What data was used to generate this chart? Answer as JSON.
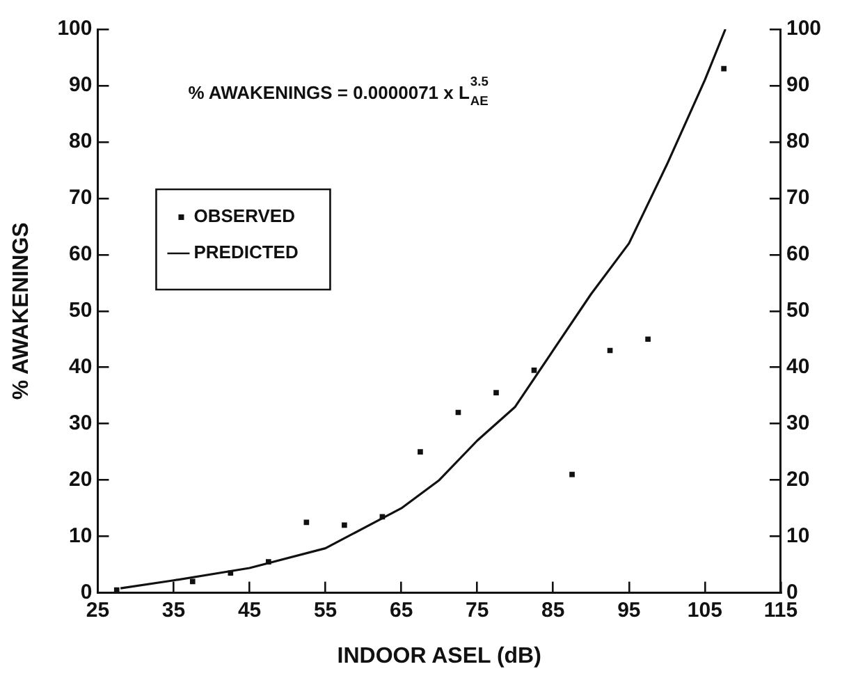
{
  "chart_data": {
    "type": "scatter",
    "xlabel": "INDOOR ASEL (dB)",
    "ylabel": "% AWAKENINGS",
    "annotations": [
      "% AWAKENINGS = 0.0000071 x L$_{AE}$$^{3.5}$"
    ],
    "series": [
      {
        "name": "OBSERVED",
        "color": "#111111",
        "marker": "square",
        "x": [
          27.5,
          37.5,
          42.5,
          47.5,
          52.5,
          57.5,
          62.5,
          67.5,
          72.5,
          77.5,
          82.5,
          87.5,
          92.5,
          97.5,
          107.5
        ],
        "values": [
          0.5,
          2,
          3.5,
          5.5,
          12.5,
          12,
          13.5,
          25,
          32,
          35.5,
          39.5,
          21,
          43,
          45,
          93
        ]
      },
      {
        "name": "PREDICTED",
        "type": "line",
        "color": "#111111",
        "marker": "none",
        "line_style": "solid",
        "x": [
          28,
          35,
          45,
          55,
          65,
          70,
          75,
          80,
          85,
          90,
          95,
          100,
          105,
          107.7
        ],
        "values": [
          0.8,
          2.2,
          4.4,
          7.9,
          15,
          20,
          27,
          33,
          43,
          53,
          62,
          76,
          91,
          100
        ]
      }
    ],
    "xlim": [
      25,
      115
    ],
    "xticks": [
      25,
      35,
      45,
      55,
      65,
      75,
      85,
      95,
      105,
      115
    ],
    "ylim": [
      0,
      100
    ],
    "yticks": [
      0,
      10,
      20,
      30,
      40,
      50,
      60,
      70,
      80,
      90,
      100
    ],
    "y2lim": [
      0,
      100
    ],
    "y2ticks": [
      0,
      10,
      20,
      30,
      40,
      50,
      60,
      70,
      80,
      90,
      100
    ],
    "grid": false,
    "legend": "top left"
  }
}
